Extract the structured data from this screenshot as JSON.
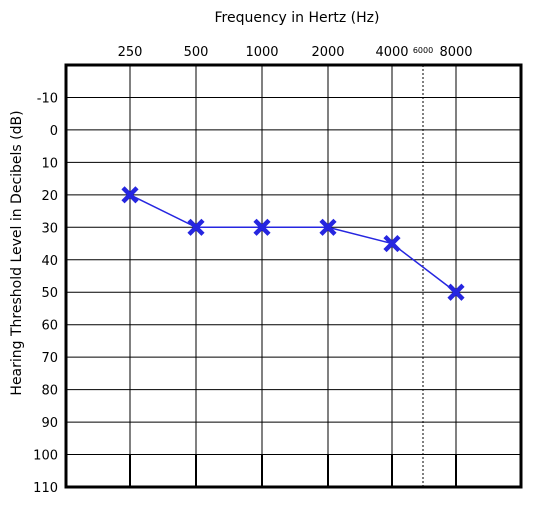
{
  "chart_data": {
    "type": "line",
    "xlabel": "Frequency in Hertz (Hz)",
    "ylabel": "Hearing Threshold Level in Decibels (dB)",
    "x_ticks": [
      "250",
      "500",
      "1000",
      "2000",
      "4000",
      "6000",
      "8000"
    ],
    "y_ticks": [
      -10,
      0,
      10,
      20,
      30,
      40,
      50,
      60,
      70,
      80,
      90,
      100,
      110
    ],
    "ylim": [
      -20,
      110
    ],
    "y_inverted": true,
    "grid": true,
    "marker": "X",
    "series_color": "#2626e0",
    "series": [
      {
        "x": [
          "250",
          "500",
          "1000",
          "2000",
          "4000",
          "8000"
        ],
        "values": [
          20,
          30,
          30,
          30,
          35,
          50
        ]
      }
    ]
  }
}
